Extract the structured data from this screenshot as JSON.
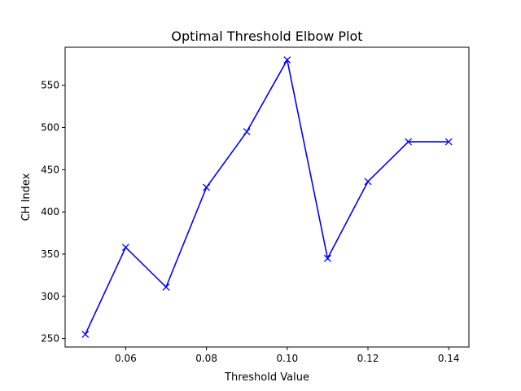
{
  "chart_data": {
    "type": "line",
    "title": "Optimal Threshold Elbow Plot",
    "xlabel": "Threshold Value",
    "ylabel": "CH Index",
    "xlim": [
      0.045,
      0.145
    ],
    "ylim": [
      240,
      595
    ],
    "xticks": [
      0.06,
      0.08,
      0.1,
      0.12,
      0.14
    ],
    "xtick_labels": [
      "0.06",
      "0.08",
      "0.10",
      "0.12",
      "0.14"
    ],
    "yticks": [
      250,
      300,
      350,
      400,
      450,
      500,
      550
    ],
    "ytick_labels": [
      "250",
      "300",
      "350",
      "400",
      "450",
      "500",
      "550"
    ],
    "grid": false,
    "series": [
      {
        "color": "#0000ff",
        "marker": "x",
        "x": [
          0.05,
          0.06,
          0.07,
          0.08,
          0.09,
          0.1,
          0.11,
          0.12,
          0.13,
          0.14
        ],
        "y": [
          255,
          358,
          311,
          429,
          495,
          580,
          345,
          436,
          483,
          483
        ]
      }
    ]
  }
}
